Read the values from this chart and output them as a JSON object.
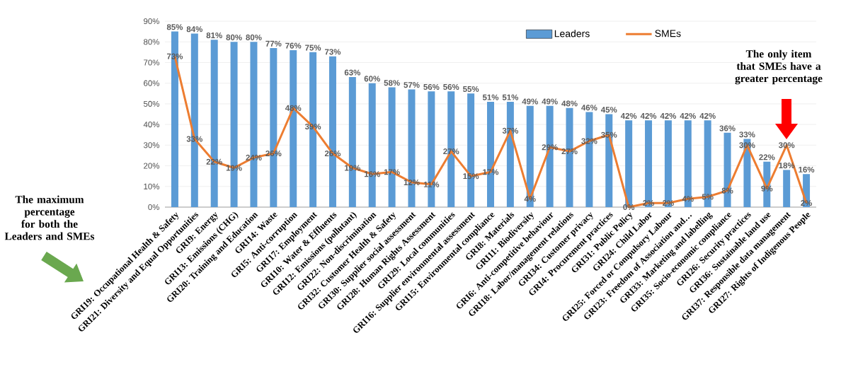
{
  "chart_data": {
    "type": "bar",
    "categories": [
      "GRI19: Occupational Health & Safety",
      "GRI21: Diversity and Equal Opportunities",
      "GRI9: Energy",
      "GRI13: Emissions (CHG)",
      "GRI20: Training and Education",
      "GRI14: Waste",
      "GRI5: Anti-corruption",
      "GRI17: Employment",
      "GRI10: Water & Effluents",
      "GRI12: Emissions (pollutant)",
      "GRI22: Non-discrimination",
      "GRI32: Customer Health & Safety",
      "GRI30: Supplier social assessment",
      "GRI28: Human Rights Assessment",
      "GRI29: Local communities",
      "GRI16: Supplier environmental assessment",
      "GRI15: Environmental compliance",
      "GRI8: Materials",
      "GRI11: Biodiversity",
      "GRI6: Anti-competitive behaviour",
      "GRI18: Labor/management relations",
      "GRI34: Customer privacy",
      "GRI4: Procurement practices",
      "GRI31: Public Policy",
      "GRI24: Child Labor",
      "GRI25: Forced or Compulsory Labour",
      "GRI23: Freedom of Association and…",
      "GRI33: Marketing and labelling",
      "GRI35: Socio-economic compliance",
      "GRI26: Security practices",
      "GRI36: Sustainable land use",
      "GRI37: Responsible data management",
      "GRI27: Rights of Indigenous People"
    ],
    "series": [
      {
        "name": "Leaders",
        "color": "#5b9bd5",
        "values": [
          85,
          84,
          81,
          80,
          80,
          77,
          76,
          75,
          73,
          63,
          60,
          58,
          57,
          56,
          56,
          55,
          51,
          51,
          49,
          49,
          48,
          46,
          45,
          42,
          42,
          42,
          42,
          42,
          36,
          33,
          22,
          18,
          16
        ],
        "value_labels": [
          "85%",
          "84%",
          "81%",
          "80%",
          "80%",
          "77%",
          "76%",
          "75%",
          "73%",
          "63%",
          "60%",
          "58%",
          "57%",
          "56%",
          "56%",
          "55%",
          "51%",
          "51%",
          "49%",
          "49%",
          "48%",
          "46%",
          "45%",
          "42%",
          "42%",
          "42%",
          "42%",
          "42%",
          "36%",
          "33%",
          "22%",
          "18%",
          "16%"
        ]
      },
      {
        "name": "SMEs",
        "type": "line",
        "color": "#ed7d31",
        "values": [
          73,
          33,
          22,
          19,
          24,
          26,
          48,
          39,
          26,
          19,
          16,
          17,
          12,
          11,
          27,
          15,
          17,
          37,
          4,
          29,
          27,
          32,
          35,
          0,
          2,
          2,
          4,
          5,
          8,
          30,
          9,
          30,
          2
        ],
        "value_labels": [
          "73%",
          "33%",
          "22%",
          "19%",
          "24%",
          "26%",
          "48%",
          "39%",
          "26%",
          "19%",
          "16%",
          "17%",
          "12%",
          "11%",
          "27%",
          "15%",
          "17%",
          "37%",
          "4%",
          "29%",
          "27%",
          "32%",
          "35%",
          "0%",
          "2%",
          "2%",
          "4%",
          "5%",
          "8%",
          "30%",
          "9%",
          "30%",
          "2%"
        ]
      }
    ],
    "ylim": [
      0,
      90
    ],
    "yticks": [
      {
        "value": 0,
        "label": "0%"
      },
      {
        "value": 10,
        "label": "10%"
      },
      {
        "value": 20,
        "label": "20%"
      },
      {
        "value": 30,
        "label": "30%"
      },
      {
        "value": 40,
        "label": "40%"
      },
      {
        "value": 50,
        "label": "50%"
      },
      {
        "value": 60,
        "label": "60%"
      },
      {
        "value": 70,
        "label": "70%"
      },
      {
        "value": 80,
        "label": "80%"
      },
      {
        "value": 90,
        "label": "90%"
      }
    ],
    "grid": "y",
    "legend": "top right",
    "annotations": [
      "The maximum percentage for both the Leaders and SMEs",
      "The only item that SMEs have a greater percentage"
    ]
  }
}
